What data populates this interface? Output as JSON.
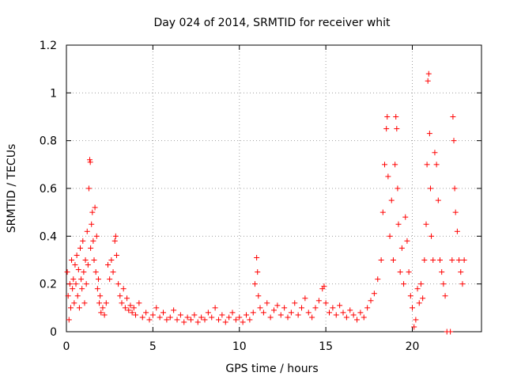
{
  "chart_data": {
    "type": "scatter",
    "title": "Day 024 of 2014, SRMTID for receiver whit",
    "xlabel": "GPS time / hours",
    "ylabel": "SRMTID / TECUs",
    "xlim": [
      0,
      24
    ],
    "ylim": [
      0,
      1.2
    ],
    "x_ticks": [
      0,
      5,
      10,
      15,
      20
    ],
    "x_tick_labels": [
      "0",
      "5",
      "10",
      "15",
      "20"
    ],
    "y_ticks": [
      0,
      0.2,
      0.4,
      0.6,
      0.8,
      1.0,
      1.2
    ],
    "y_tick_labels": [
      "0",
      "0.2",
      "0.4",
      "0.6",
      "0.8",
      "1",
      "1.2"
    ],
    "grid": true,
    "marker": "+",
    "color": "#ff0000",
    "series": [
      {
        "name": "SRMTID",
        "points": [
          [
            0.05,
            0.25
          ],
          [
            0.1,
            0.15
          ],
          [
            0.15,
            0.05
          ],
          [
            0.2,
            0.2
          ],
          [
            0.25,
            0.1
          ],
          [
            0.3,
            0.3
          ],
          [
            0.35,
            0.18
          ],
          [
            0.4,
            0.22
          ],
          [
            0.45,
            0.12
          ],
          [
            0.5,
            0.28
          ],
          [
            0.55,
            0.2
          ],
          [
            0.6,
            0.32
          ],
          [
            0.65,
            0.15
          ],
          [
            0.7,
            0.26
          ],
          [
            0.75,
            0.1
          ],
          [
            0.8,
            0.35
          ],
          [
            0.85,
            0.22
          ],
          [
            0.9,
            0.18
          ],
          [
            0.95,
            0.38
          ],
          [
            1.0,
            0.25
          ],
          [
            1.05,
            0.12
          ],
          [
            1.1,
            0.3
          ],
          [
            1.15,
            0.2
          ],
          [
            1.2,
            0.42
          ],
          [
            1.25,
            0.28
          ],
          [
            1.3,
            0.6
          ],
          [
            1.35,
            0.72
          ],
          [
            1.38,
            0.71
          ],
          [
            1.4,
            0.35
          ],
          [
            1.45,
            0.45
          ],
          [
            1.5,
            0.5
          ],
          [
            1.55,
            0.38
          ],
          [
            1.6,
            0.3
          ],
          [
            1.65,
            0.52
          ],
          [
            1.7,
            0.25
          ],
          [
            1.75,
            0.4
          ],
          [
            1.8,
            0.18
          ],
          [
            1.85,
            0.22
          ],
          [
            1.9,
            0.12
          ],
          [
            1.95,
            0.15
          ],
          [
            2.0,
            0.08
          ],
          [
            2.1,
            0.1
          ],
          [
            2.2,
            0.07
          ],
          [
            2.3,
            0.12
          ],
          [
            2.4,
            0.28
          ],
          [
            2.5,
            0.22
          ],
          [
            2.6,
            0.3
          ],
          [
            2.7,
            0.25
          ],
          [
            2.8,
            0.38
          ],
          [
            2.85,
            0.4
          ],
          [
            2.9,
            0.32
          ],
          [
            3.0,
            0.2
          ],
          [
            3.1,
            0.15
          ],
          [
            3.2,
            0.12
          ],
          [
            3.3,
            0.18
          ],
          [
            3.4,
            0.1
          ],
          [
            3.5,
            0.14
          ],
          [
            3.6,
            0.09
          ],
          [
            3.7,
            0.11
          ],
          [
            3.8,
            0.08
          ],
          [
            3.9,
            0.1
          ],
          [
            4.0,
            0.07
          ],
          [
            4.2,
            0.12
          ],
          [
            4.4,
            0.06
          ],
          [
            4.6,
            0.08
          ],
          [
            4.8,
            0.05
          ],
          [
            5.0,
            0.07
          ],
          [
            5.2,
            0.1
          ],
          [
            5.4,
            0.06
          ],
          [
            5.6,
            0.08
          ],
          [
            5.8,
            0.05
          ],
          [
            6.0,
            0.06
          ],
          [
            6.2,
            0.09
          ],
          [
            6.4,
            0.05
          ],
          [
            6.6,
            0.07
          ],
          [
            6.8,
            0.04
          ],
          [
            7.0,
            0.06
          ],
          [
            7.2,
            0.05
          ],
          [
            7.4,
            0.07
          ],
          [
            7.6,
            0.04
          ],
          [
            7.8,
            0.06
          ],
          [
            8.0,
            0.05
          ],
          [
            8.2,
            0.08
          ],
          [
            8.4,
            0.06
          ],
          [
            8.6,
            0.1
          ],
          [
            8.8,
            0.05
          ],
          [
            9.0,
            0.07
          ],
          [
            9.2,
            0.04
          ],
          [
            9.4,
            0.06
          ],
          [
            9.6,
            0.08
          ],
          [
            9.8,
            0.05
          ],
          [
            10.0,
            0.06
          ],
          [
            10.2,
            0.04
          ],
          [
            10.4,
            0.07
          ],
          [
            10.6,
            0.05
          ],
          [
            10.8,
            0.08
          ],
          [
            10.9,
            0.2
          ],
          [
            11.0,
            0.31
          ],
          [
            11.05,
            0.25
          ],
          [
            11.1,
            0.15
          ],
          [
            11.2,
            0.1
          ],
          [
            11.4,
            0.08
          ],
          [
            11.6,
            0.12
          ],
          [
            11.8,
            0.06
          ],
          [
            12.0,
            0.09
          ],
          [
            12.2,
            0.11
          ],
          [
            12.4,
            0.07
          ],
          [
            12.6,
            0.1
          ],
          [
            12.8,
            0.06
          ],
          [
            13.0,
            0.08
          ],
          [
            13.2,
            0.12
          ],
          [
            13.4,
            0.07
          ],
          [
            13.6,
            0.1
          ],
          [
            13.8,
            0.14
          ],
          [
            14.0,
            0.08
          ],
          [
            14.2,
            0.06
          ],
          [
            14.4,
            0.1
          ],
          [
            14.6,
            0.13
          ],
          [
            14.8,
            0.18
          ],
          [
            14.9,
            0.19
          ],
          [
            15.0,
            0.12
          ],
          [
            15.2,
            0.08
          ],
          [
            15.4,
            0.1
          ],
          [
            15.6,
            0.07
          ],
          [
            15.8,
            0.11
          ],
          [
            16.0,
            0.08
          ],
          [
            16.2,
            0.06
          ],
          [
            16.4,
            0.09
          ],
          [
            16.6,
            0.07
          ],
          [
            16.8,
            0.05
          ],
          [
            17.0,
            0.08
          ],
          [
            17.2,
            0.06
          ],
          [
            17.4,
            0.1
          ],
          [
            17.6,
            0.13
          ],
          [
            17.8,
            0.16
          ],
          [
            18.0,
            0.22
          ],
          [
            18.2,
            0.3
          ],
          [
            18.3,
            0.5
          ],
          [
            18.4,
            0.7
          ],
          [
            18.5,
            0.85
          ],
          [
            18.55,
            0.9
          ],
          [
            18.6,
            0.65
          ],
          [
            18.7,
            0.4
          ],
          [
            18.8,
            0.55
          ],
          [
            18.9,
            0.3
          ],
          [
            19.0,
            0.7
          ],
          [
            19.05,
            0.9
          ],
          [
            19.1,
            0.85
          ],
          [
            19.15,
            0.6
          ],
          [
            19.2,
            0.45
          ],
          [
            19.3,
            0.25
          ],
          [
            19.4,
            0.35
          ],
          [
            19.5,
            0.2
          ],
          [
            19.6,
            0.48
          ],
          [
            19.7,
            0.38
          ],
          [
            19.8,
            0.25
          ],
          [
            19.9,
            0.15
          ],
          [
            20.0,
            0.1
          ],
          [
            20.1,
            0.02
          ],
          [
            20.2,
            0.05
          ],
          [
            20.3,
            0.18
          ],
          [
            20.4,
            0.12
          ],
          [
            20.5,
            0.2
          ],
          [
            20.6,
            0.14
          ],
          [
            20.7,
            0.3
          ],
          [
            20.8,
            0.45
          ],
          [
            20.85,
            0.7
          ],
          [
            20.9,
            1.05
          ],
          [
            20.95,
            1.08
          ],
          [
            21.0,
            0.83
          ],
          [
            21.05,
            0.6
          ],
          [
            21.1,
            0.4
          ],
          [
            21.2,
            0.3
          ],
          [
            21.3,
            0.75
          ],
          [
            21.4,
            0.7
          ],
          [
            21.5,
            0.55
          ],
          [
            21.6,
            0.3
          ],
          [
            21.7,
            0.25
          ],
          [
            21.8,
            0.2
          ],
          [
            21.9,
            0.15
          ],
          [
            22.0,
            0.0
          ],
          [
            22.2,
            0.0
          ],
          [
            22.3,
            0.3
          ],
          [
            22.35,
            0.9
          ],
          [
            22.4,
            0.8
          ],
          [
            22.45,
            0.6
          ],
          [
            22.5,
            0.5
          ],
          [
            22.6,
            0.42
          ],
          [
            22.7,
            0.3
          ],
          [
            22.8,
            0.25
          ],
          [
            22.9,
            0.2
          ],
          [
            23.0,
            0.3
          ]
        ]
      }
    ]
  }
}
